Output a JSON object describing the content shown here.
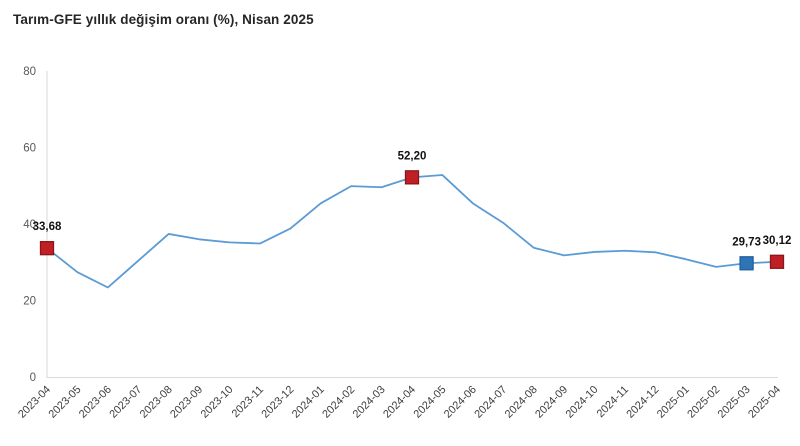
{
  "title": "Tarım-GFE yıllık değişim oranı (%), Nisan 2025",
  "colors": {
    "background": "#ffffff",
    "line": "#5b9bd5",
    "axis": "#d9d9d9",
    "tick_text": "#595959",
    "xtick_text": "#404040",
    "title_text": "#262626",
    "data_label_text": "#111111",
    "marker_red_fill": "#be2026",
    "marker_red_border": "#8e1419",
    "marker_blue_fill": "#2e75b6",
    "marker_blue_border": "#1f5fa0"
  },
  "chart_data": {
    "type": "line",
    "title": "Tarım-GFE yıllık değişim oranı (%), Nisan 2025",
    "xlabel": "",
    "ylabel": "",
    "ylim": [
      0,
      80
    ],
    "yticks": [
      0,
      20,
      40,
      60,
      80
    ],
    "grid": false,
    "legend": false,
    "categories": [
      "2023-04",
      "2023-05",
      "2023-06",
      "2023-07",
      "2023-08",
      "2023-09",
      "2023-10",
      "2023-11",
      "2023-12",
      "2024-01",
      "2024-02",
      "2024-03",
      "2024-04",
      "2024-05",
      "2024-06",
      "2024-07",
      "2024-08",
      "2024-09",
      "2024-10",
      "2024-11",
      "2024-12",
      "2025-01",
      "2025-02",
      "2025-03",
      "2025-04"
    ],
    "values": [
      33.68,
      27.4,
      23.4,
      30.4,
      37.4,
      36.0,
      35.2,
      34.9,
      38.8,
      45.4,
      49.9,
      49.6,
      52.2,
      52.8,
      45.4,
      40.3,
      33.8,
      31.8,
      32.7,
      33.0,
      32.6,
      30.8,
      28.8,
      29.73,
      30.12
    ],
    "annotated_points": [
      {
        "index": 0,
        "category": "2023-04",
        "label": "33,68",
        "marker": "red-square"
      },
      {
        "index": 12,
        "category": "2024-04",
        "label": "52,20",
        "marker": "red-square"
      },
      {
        "index": 23,
        "category": "2025-03",
        "label": "29,73",
        "marker": "blue-square"
      },
      {
        "index": 24,
        "category": "2025-04",
        "label": "30,12",
        "marker": "red-square"
      }
    ]
  }
}
